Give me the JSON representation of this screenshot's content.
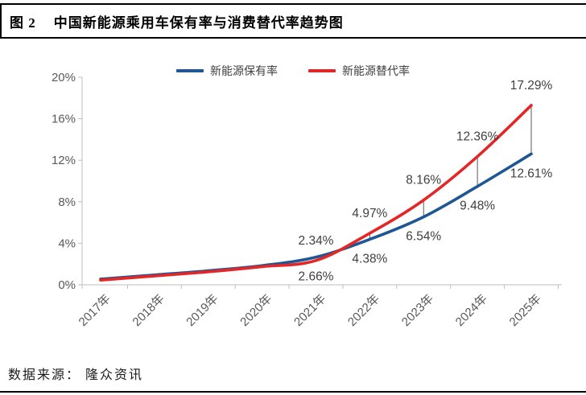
{
  "title": {
    "figure_label": "图 2",
    "text": "中国新能源乘用车保有率与消费替代率趋势图"
  },
  "footer": {
    "text": "数据来源： 隆众资讯"
  },
  "colors": {
    "ownership_line": "#1F5795",
    "substitution_line": "#E32726",
    "axis_line": "#BFBFBF",
    "tick_text": "#595959",
    "data_label_text": "#404040",
    "connector_line": "#595959",
    "rule": "#000000"
  },
  "chart_data": {
    "type": "line",
    "title": "",
    "xlabel": "",
    "ylabel": "",
    "categories": [
      "2017年",
      "2018年",
      "2019年",
      "2020年",
      "2021年",
      "2022年",
      "2023年",
      "2024年",
      "2025年"
    ],
    "series": [
      {
        "name": "新能源保有率",
        "color": "#1F5795",
        "values": [
          0.55,
          0.95,
          1.35,
          1.85,
          2.66,
          4.38,
          6.54,
          9.48,
          12.61
        ],
        "point_labels": [
          null,
          null,
          null,
          null,
          "2.66%",
          "4.38%",
          "6.54%",
          "9.48%",
          "12.61%"
        ],
        "label_side": "below"
      },
      {
        "name": "新能源替代率",
        "color": "#E32726",
        "values": [
          0.45,
          0.85,
          1.25,
          1.75,
          2.34,
          4.97,
          8.16,
          12.36,
          17.29
        ],
        "point_labels": [
          null,
          null,
          null,
          null,
          "2.34%",
          "4.97%",
          "8.16%",
          "12.36%",
          "17.29%"
        ],
        "label_side": "above"
      }
    ],
    "ylim": [
      0,
      20
    ],
    "ytick_labels": [
      "0%",
      "4%",
      "8%",
      "12%",
      "16%",
      "20%"
    ],
    "connector_categories": [
      "2022年",
      "2023年",
      "2024年",
      "2025年"
    ],
    "legend_position": "top-center",
    "grid": false,
    "smoothed_lines": true
  }
}
